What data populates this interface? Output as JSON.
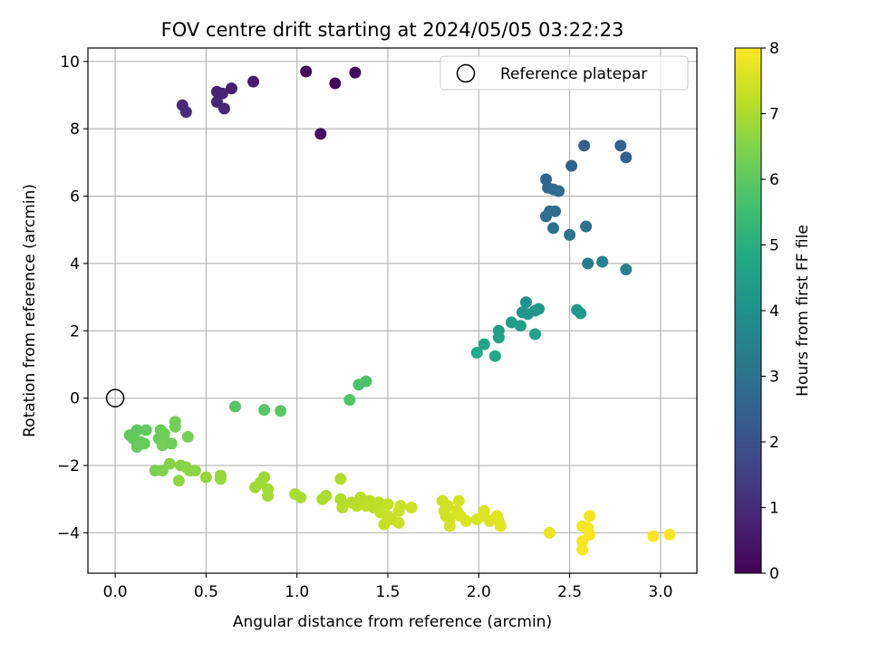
{
  "chart_data": {
    "type": "scatter",
    "title": "FOV centre drift starting at 2024/05/05 03:22:23",
    "xlabel": "Angular distance from reference (arcmin)",
    "ylabel": "Rotation from reference (arcmin)",
    "xlim": [
      -0.15,
      3.2
    ],
    "ylim": [
      -5.2,
      10.4
    ],
    "xticks": [
      0.0,
      0.5,
      1.0,
      1.5,
      2.0,
      2.5,
      3.0
    ],
    "xtick_labels": [
      "0.0",
      "0.5",
      "1.0",
      "1.5",
      "2.0",
      "2.5",
      "3.0"
    ],
    "yticks": [
      -4,
      -2,
      0,
      2,
      4,
      6,
      8,
      10
    ],
    "ytick_labels": [
      "−4",
      "−2",
      "0",
      "2",
      "4",
      "6",
      "8",
      "10"
    ],
    "grid": true,
    "legend": {
      "position": "upper-right",
      "entries": [
        "Reference platepar"
      ]
    },
    "reference_point": {
      "x": 0.0,
      "y": 0.0,
      "label": "Reference platepar"
    },
    "colorbar": {
      "label": "Hours from first FF file",
      "min": 0,
      "max": 8,
      "ticks": [
        0,
        1,
        2,
        3,
        4,
        5,
        6,
        7,
        8
      ],
      "colormap": "viridis"
    },
    "points": [
      [
        1.05,
        9.7,
        0.05
      ],
      [
        1.32,
        9.67,
        0.1
      ],
      [
        1.21,
        9.35,
        0.15
      ],
      [
        1.13,
        7.85,
        0.3
      ],
      [
        0.76,
        9.4,
        0.6
      ],
      [
        0.64,
        9.2,
        0.7
      ],
      [
        0.56,
        9.1,
        0.75
      ],
      [
        0.59,
        9.05,
        0.8
      ],
      [
        0.56,
        8.8,
        0.85
      ],
      [
        0.6,
        8.6,
        0.9
      ],
      [
        0.37,
        8.7,
        0.95
      ],
      [
        0.39,
        8.5,
        1.0
      ],
      [
        2.58,
        7.5,
        2.4
      ],
      [
        2.78,
        7.5,
        2.45
      ],
      [
        2.81,
        7.15,
        2.5
      ],
      [
        2.51,
        6.9,
        2.55
      ],
      [
        2.37,
        6.5,
        2.6
      ],
      [
        2.38,
        6.25,
        2.65
      ],
      [
        2.41,
        6.2,
        2.7
      ],
      [
        2.44,
        6.15,
        2.75
      ],
      [
        2.39,
        5.55,
        2.8
      ],
      [
        2.42,
        5.55,
        2.85
      ],
      [
        2.37,
        5.4,
        2.9
      ],
      [
        2.41,
        5.05,
        2.95
      ],
      [
        2.59,
        5.1,
        3.0
      ],
      [
        2.5,
        4.85,
        3.05
      ],
      [
        2.6,
        4.0,
        3.4
      ],
      [
        2.68,
        4.05,
        3.45
      ],
      [
        2.81,
        3.82,
        3.5
      ],
      [
        2.26,
        2.85,
        4.0
      ],
      [
        2.31,
        2.6,
        4.05
      ],
      [
        2.24,
        2.55,
        4.1
      ],
      [
        2.27,
        2.5,
        4.15
      ],
      [
        2.33,
        2.65,
        4.2
      ],
      [
        2.54,
        2.62,
        4.25
      ],
      [
        2.56,
        2.52,
        4.3
      ],
      [
        2.18,
        2.25,
        4.4
      ],
      [
        2.23,
        2.15,
        4.45
      ],
      [
        2.11,
        2.0,
        4.5
      ],
      [
        2.11,
        1.8,
        4.55
      ],
      [
        2.31,
        1.9,
        4.6
      ],
      [
        2.03,
        1.6,
        4.7
      ],
      [
        1.99,
        1.35,
        4.8
      ],
      [
        2.09,
        1.25,
        4.85
      ],
      [
        1.34,
        0.4,
        5.7
      ],
      [
        1.38,
        0.5,
        5.75
      ],
      [
        1.29,
        -0.05,
        5.8
      ],
      [
        0.66,
        -0.25,
        5.85
      ],
      [
        0.82,
        -0.35,
        5.9
      ],
      [
        0.91,
        -0.38,
        5.95
      ],
      [
        0.08,
        -1.1,
        6.0
      ],
      [
        0.12,
        -0.95,
        6.0
      ],
      [
        0.17,
        -0.95,
        6.05
      ],
      [
        0.1,
        -1.2,
        6.05
      ],
      [
        0.14,
        -1.3,
        6.1
      ],
      [
        0.16,
        -1.35,
        6.1
      ],
      [
        0.12,
        -1.45,
        6.1
      ],
      [
        0.24,
        -1.2,
        6.15
      ],
      [
        0.25,
        -0.95,
        6.15
      ],
      [
        0.27,
        -1.05,
        6.2
      ],
      [
        0.28,
        -1.3,
        6.2
      ],
      [
        0.31,
        -1.35,
        6.2
      ],
      [
        0.33,
        -0.7,
        6.25
      ],
      [
        0.33,
        -0.85,
        6.25
      ],
      [
        0.4,
        -1.15,
        6.3
      ],
      [
        0.26,
        -1.4,
        6.3
      ],
      [
        0.22,
        -2.15,
        6.4
      ],
      [
        0.26,
        -2.15,
        6.45
      ],
      [
        0.3,
        -1.95,
        6.5
      ],
      [
        0.36,
        -2.0,
        6.55
      ],
      [
        0.39,
        -2.05,
        6.55
      ],
      [
        0.41,
        -2.15,
        6.6
      ],
      [
        0.44,
        -2.15,
        6.6
      ],
      [
        0.35,
        -2.45,
        6.65
      ],
      [
        0.5,
        -2.35,
        6.7
      ],
      [
        0.58,
        -2.3,
        6.75
      ],
      [
        0.58,
        -2.4,
        6.75
      ],
      [
        0.82,
        -2.35,
        6.8
      ],
      [
        0.8,
        -2.5,
        6.85
      ],
      [
        0.77,
        -2.65,
        6.85
      ],
      [
        0.84,
        -2.7,
        6.9
      ],
      [
        0.84,
        -2.9,
        6.9
      ],
      [
        0.99,
        -2.85,
        6.95
      ],
      [
        1.02,
        -2.95,
        6.95
      ],
      [
        1.16,
        -2.9,
        7.0
      ],
      [
        1.14,
        -3.0,
        7.0
      ],
      [
        1.24,
        -2.4,
        7.05
      ],
      [
        1.24,
        -3.0,
        7.05
      ],
      [
        1.25,
        -3.25,
        7.1
      ],
      [
        1.3,
        -3.1,
        7.1
      ],
      [
        1.33,
        -3.2,
        7.15
      ],
      [
        1.35,
        -2.95,
        7.15
      ],
      [
        1.4,
        -3.05,
        7.15
      ],
      [
        1.38,
        -3.2,
        7.2
      ],
      [
        1.42,
        -3.25,
        7.2
      ],
      [
        1.45,
        -3.1,
        7.2
      ],
      [
        1.46,
        -3.4,
        7.25
      ],
      [
        1.5,
        -3.15,
        7.25
      ],
      [
        1.5,
        -3.5,
        7.3
      ],
      [
        1.48,
        -3.75,
        7.3
      ],
      [
        1.52,
        -3.6,
        7.3
      ],
      [
        1.56,
        -3.35,
        7.35
      ],
      [
        1.57,
        -3.2,
        7.35
      ],
      [
        1.56,
        -3.7,
        7.35
      ],
      [
        1.63,
        -3.25,
        7.4
      ],
      [
        1.8,
        -3.05,
        7.4
      ],
      [
        1.81,
        -3.35,
        7.4
      ],
      [
        1.82,
        -3.5,
        7.45
      ],
      [
        1.83,
        -3.2,
        7.45
      ],
      [
        1.84,
        -3.6,
        7.45
      ],
      [
        1.84,
        -3.8,
        7.5
      ],
      [
        1.89,
        -3.05,
        7.5
      ],
      [
        1.88,
        -3.35,
        7.5
      ],
      [
        1.9,
        -3.5,
        7.55
      ],
      [
        1.93,
        -3.65,
        7.55
      ],
      [
        1.99,
        -3.6,
        7.55
      ],
      [
        2.03,
        -3.35,
        7.6
      ],
      [
        2.03,
        -3.5,
        7.6
      ],
      [
        2.06,
        -3.65,
        7.6
      ],
      [
        2.1,
        -3.5,
        7.65
      ],
      [
        2.11,
        -3.65,
        7.65
      ],
      [
        2.12,
        -3.8,
        7.65
      ],
      [
        2.39,
        -4.0,
        7.8
      ],
      [
        2.57,
        -3.8,
        7.85
      ],
      [
        2.61,
        -3.5,
        7.85
      ],
      [
        2.6,
        -3.85,
        7.9
      ],
      [
        2.61,
        -4.05,
        7.9
      ],
      [
        2.57,
        -4.25,
        7.95
      ],
      [
        2.57,
        -4.5,
        7.95
      ],
      [
        2.96,
        -4.1,
        8.0
      ],
      [
        3.05,
        -4.05,
        8.0
      ]
    ]
  }
}
